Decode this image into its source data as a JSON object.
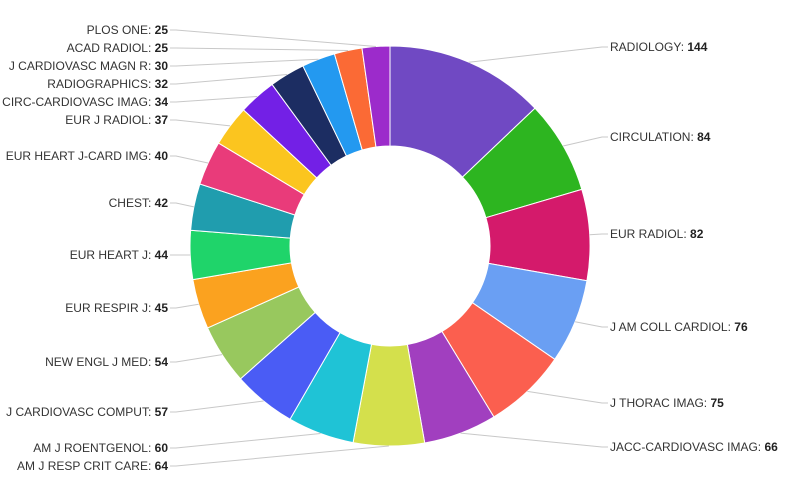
{
  "chart_data": {
    "type": "pie",
    "donut": true,
    "legend": "none",
    "categories": [
      "RADIOLOGY",
      "CIRCULATION",
      "EUR RADIOL",
      "J AM COLL CARDIOL",
      "J THORAC IMAG",
      "JACC-CARDIOVASC IMAG",
      "AM J RESP CRIT CARE",
      "AM J ROENTGENOL",
      "J CARDIOVASC COMPUT",
      "NEW ENGL J MED",
      "EUR RESPIR J",
      "EUR HEART J",
      "CHEST",
      "EUR HEART J-CARD IMG",
      "EUR J RADIOL",
      "CIRC-CARDIOVASC IMAG",
      "RADIOGRAPHICS",
      "J CARDIOVASC MAGN R",
      "ACAD RADIOL",
      "PLOS ONE"
    ],
    "values": [
      144,
      84,
      82,
      76,
      75,
      66,
      64,
      60,
      57,
      54,
      45,
      44,
      42,
      40,
      37,
      34,
      32,
      30,
      25,
      25
    ],
    "colors": [
      "#7049c3",
      "#2db520",
      "#d41a6b",
      "#6a9ff3",
      "#fb5f4f",
      "#a13fbf",
      "#d4e04c",
      "#1fc3d6",
      "#4a5cf5",
      "#98c85e",
      "#fba21f",
      "#1fd46a",
      "#209dae",
      "#e93b7a",
      "#fbc51f",
      "#7320e6",
      "#1c2d62",
      "#2399f0",
      "#fb6a35",
      "#9c2bcb"
    ]
  }
}
